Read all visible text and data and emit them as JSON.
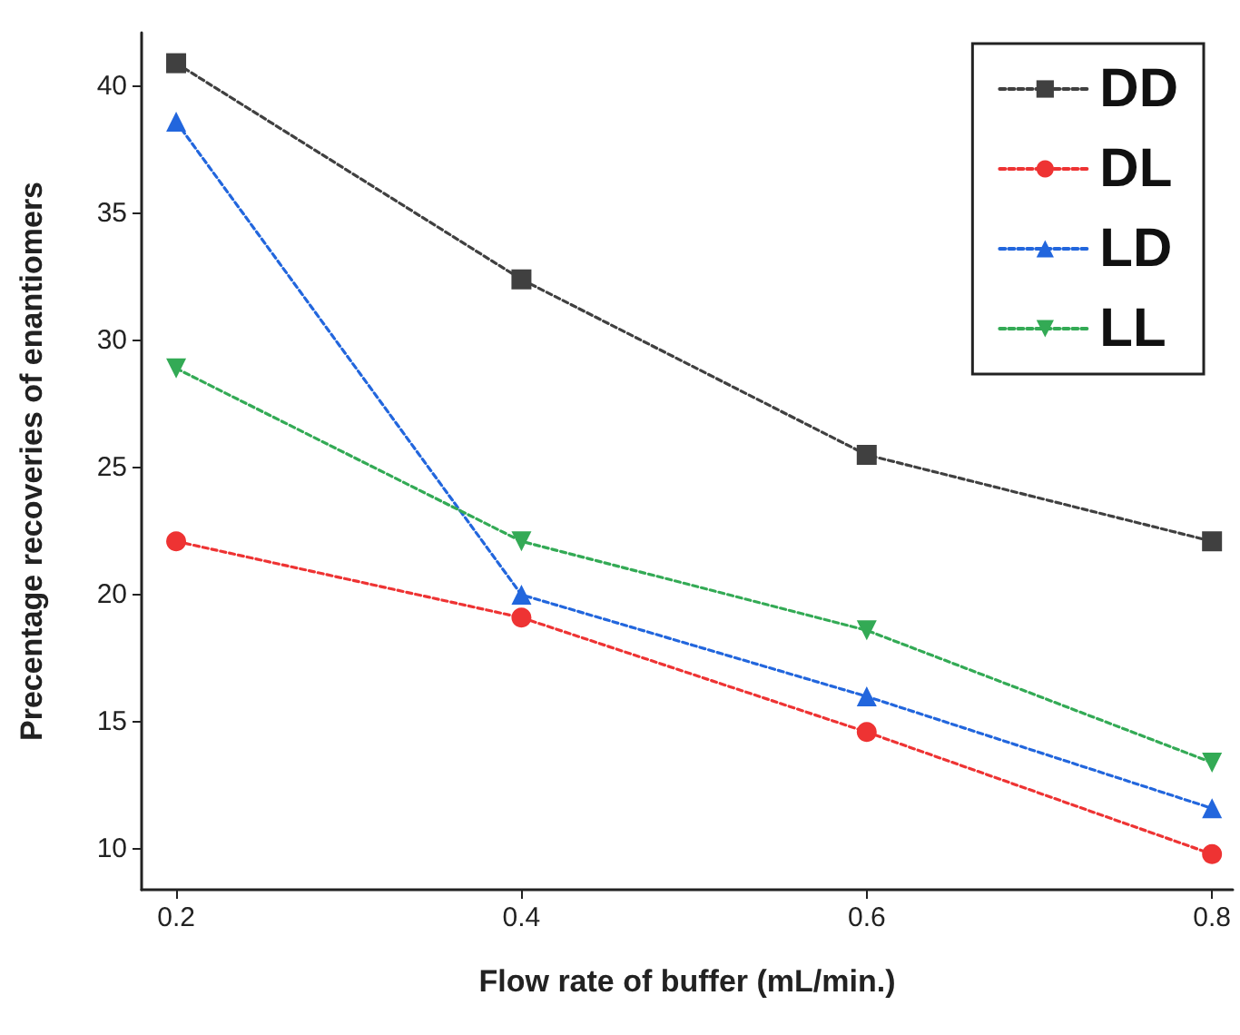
{
  "chart_data": {
    "type": "line",
    "xlabel": "Flow rate of buffer (mL/min.)",
    "ylabel": "Precentage recoveries of enantiomers",
    "x": [
      0.2,
      0.4,
      0.6,
      0.8
    ],
    "series": [
      {
        "name": "DD",
        "color": "#404040",
        "marker": "square",
        "values": [
          40.9,
          32.4,
          25.5,
          22.1
        ]
      },
      {
        "name": "DL",
        "color": "#ee3333",
        "marker": "circle",
        "values": [
          22.1,
          19.1,
          14.6,
          9.8
        ]
      },
      {
        "name": "LD",
        "color": "#2266dd",
        "marker": "triangle",
        "values": [
          38.6,
          20.0,
          16.0,
          11.6
        ]
      },
      {
        "name": "LL",
        "color": "#33aa55",
        "marker": "triangle-down",
        "values": [
          28.9,
          22.1,
          18.6,
          13.4
        ]
      }
    ],
    "xlim": [
      0.18,
      0.812
    ],
    "xticks": [
      0.2,
      0.4,
      0.6,
      0.8
    ],
    "ylim": [
      8.4,
      42.1
    ],
    "yticks": [
      10,
      15,
      20,
      25,
      30,
      35,
      40
    ],
    "line_style": "dotted",
    "grid": false,
    "legend": "top right"
  }
}
